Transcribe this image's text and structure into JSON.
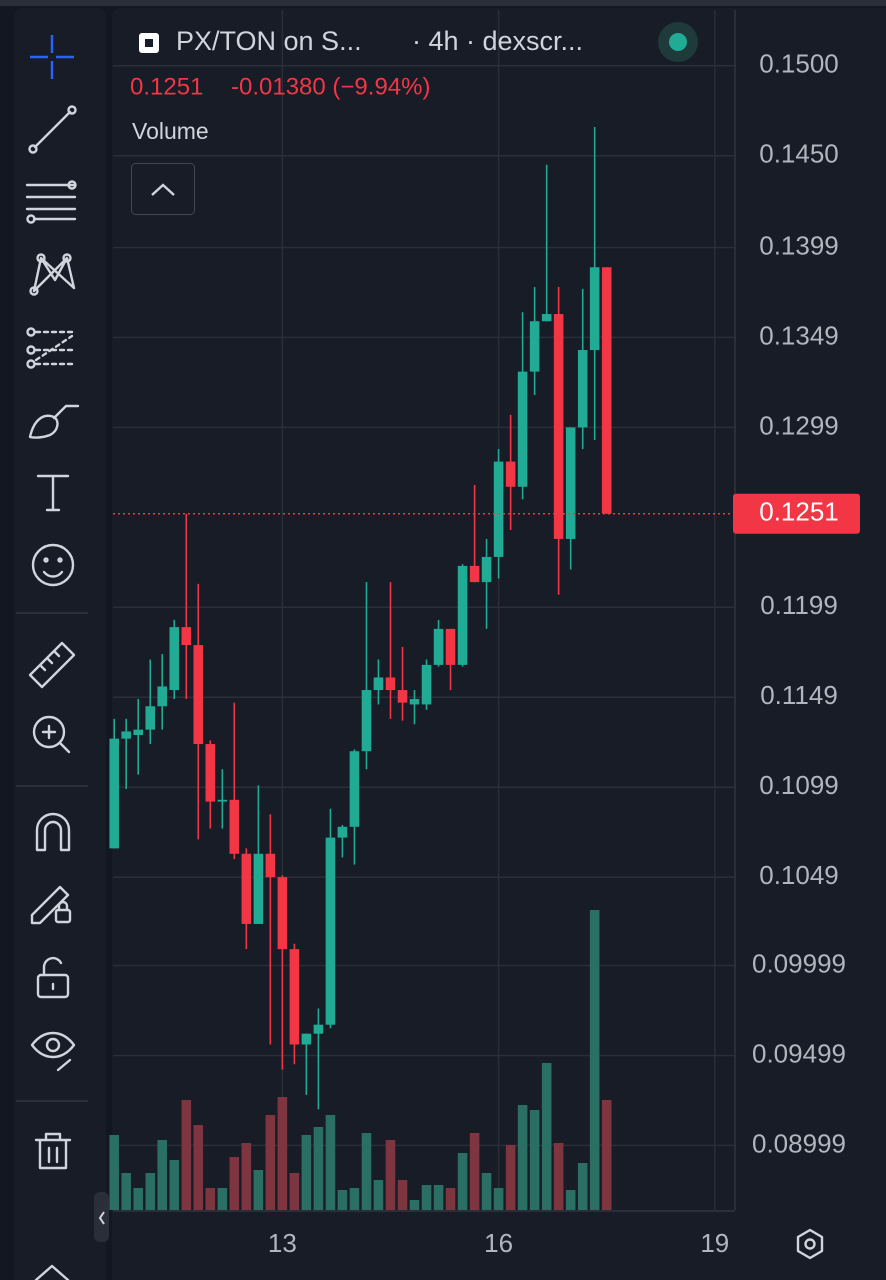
{
  "chart_data": {
    "type": "candlestick",
    "title": "PX/TON on S...",
    "interval": "· 4h · dexscr...",
    "close_label": "0.1251",
    "change_label": "-0.01380 (−9.94%)",
    "indicator": "Volume",
    "up_color": "#22ab94",
    "down_color": "#f23645",
    "volume_up_color": "#2b6e63",
    "volume_down_color": "#7d3540",
    "grid": true,
    "x": [
      10.667,
      10.833,
      11,
      11.167,
      11.333,
      11.5,
      11.667,
      11.833,
      12,
      12.167,
      12.333,
      12.5,
      12.667,
      12.833,
      13,
      13.167,
      13.333,
      13.5,
      13.667,
      13.833,
      14,
      14.167,
      14.333,
      14.5,
      14.667,
      14.833,
      15,
      15.167,
      15.333,
      15.5,
      15.667,
      15.833,
      16,
      16.167,
      16.333,
      16.5,
      16.667,
      16.833,
      17,
      17.167,
      17.333,
      17.5
    ],
    "open": [
      0.1065,
      0.1126,
      0.1128,
      0.1131,
      0.1144,
      0.1153,
      0.1188,
      0.1178,
      0.1123,
      0.1091,
      0.1092,
      0.1062,
      0.1023,
      0.1062,
      0.1049,
      0.1009,
      0.0956,
      0.0962,
      0.0967,
      0.1071,
      0.1077,
      0.1119,
      0.1153,
      0.116,
      0.1153,
      0.1145,
      0.1145,
      0.1167,
      0.1187,
      0.1167,
      0.1222,
      0.1213,
      0.1227,
      0.128,
      0.1266,
      0.133,
      0.1358,
      0.1362,
      0.1237,
      0.1299,
      0.1342,
      0.1388
    ],
    "high": [
      0.1137,
      0.1137,
      0.1148,
      0.117,
      0.1173,
      0.1192,
      0.1251,
      0.1212,
      0.1125,
      0.1109,
      0.1146,
      0.1065,
      0.11,
      0.1084,
      0.105,
      0.1012,
      0.0962,
      0.0976,
      0.1087,
      0.1078,
      0.112,
      0.1213,
      0.117,
      0.1213,
      0.1177,
      0.1153,
      0.117,
      0.1192,
      0.1187,
      0.1223,
      0.1267,
      0.1237,
      0.1287,
      0.1306,
      0.1363,
      0.1377,
      0.1445,
      0.1377,
      0.1299,
      0.1376,
      0.1466,
      0.1388
    ],
    "low": [
      0.1065,
      0.1098,
      0.1106,
      0.1123,
      0.1131,
      0.1148,
      0.1148,
      0.107,
      0.1076,
      0.1076,
      0.1059,
      0.1009,
      0.1023,
      0.0956,
      0.0942,
      0.0945,
      0.0928,
      0.092,
      0.0965,
      0.106,
      0.1056,
      0.1109,
      0.1145,
      0.1137,
      0.1136,
      0.1134,
      0.1142,
      0.1166,
      0.1153,
      0.1166,
      0.1213,
      0.1187,
      0.1215,
      0.1242,
      0.1259,
      0.1317,
      0.1358,
      0.1206,
      0.122,
      0.1287,
      0.1292,
      0.1251
    ],
    "close": [
      0.1126,
      0.113,
      0.1131,
      0.1144,
      0.1155,
      0.1188,
      0.1178,
      0.1123,
      0.1091,
      0.1092,
      0.1062,
      0.1023,
      0.1062,
      0.1049,
      0.1009,
      0.0956,
      0.0962,
      0.0967,
      0.1071,
      0.1077,
      0.1119,
      0.1153,
      0.116,
      0.1153,
      0.1146,
      0.1148,
      0.1167,
      0.1187,
      0.1167,
      0.1222,
      0.1213,
      0.1227,
      0.128,
      0.1266,
      0.133,
      0.1358,
      0.1362,
      0.1237,
      0.1299,
      0.1342,
      0.1388,
      0.1251
    ],
    "volume": [
      75,
      37,
      22,
      37,
      70,
      50,
      110,
      85,
      22,
      22,
      53,
      67,
      40,
      95,
      113,
      37,
      75,
      83,
      95,
      20,
      22,
      77,
      30,
      70,
      30,
      10,
      25,
      25,
      22,
      57,
      77,
      37,
      22,
      65,
      105,
      100,
      147,
      67,
      20,
      47,
      300,
      110
    ],
    "volume_lim": [
      0,
      310
    ],
    "last_price": 0.1251,
    "last_price_label": "0.1251",
    "xlim": [
      10.65,
      19.28
    ],
    "xticks": [
      13,
      16,
      19
    ],
    "ylim": [
      0.0864,
      0.1531
    ],
    "yticks": [
      {
        "value": 0.15,
        "label": "0.1500"
      },
      {
        "value": 0.145,
        "label": "0.1450"
      },
      0.1399,
      0.1349,
      0.1299,
      0.1199,
      0.1149,
      0.1099,
      0.1049,
      0.09999,
      0.09499,
      0.08999
    ]
  }
}
